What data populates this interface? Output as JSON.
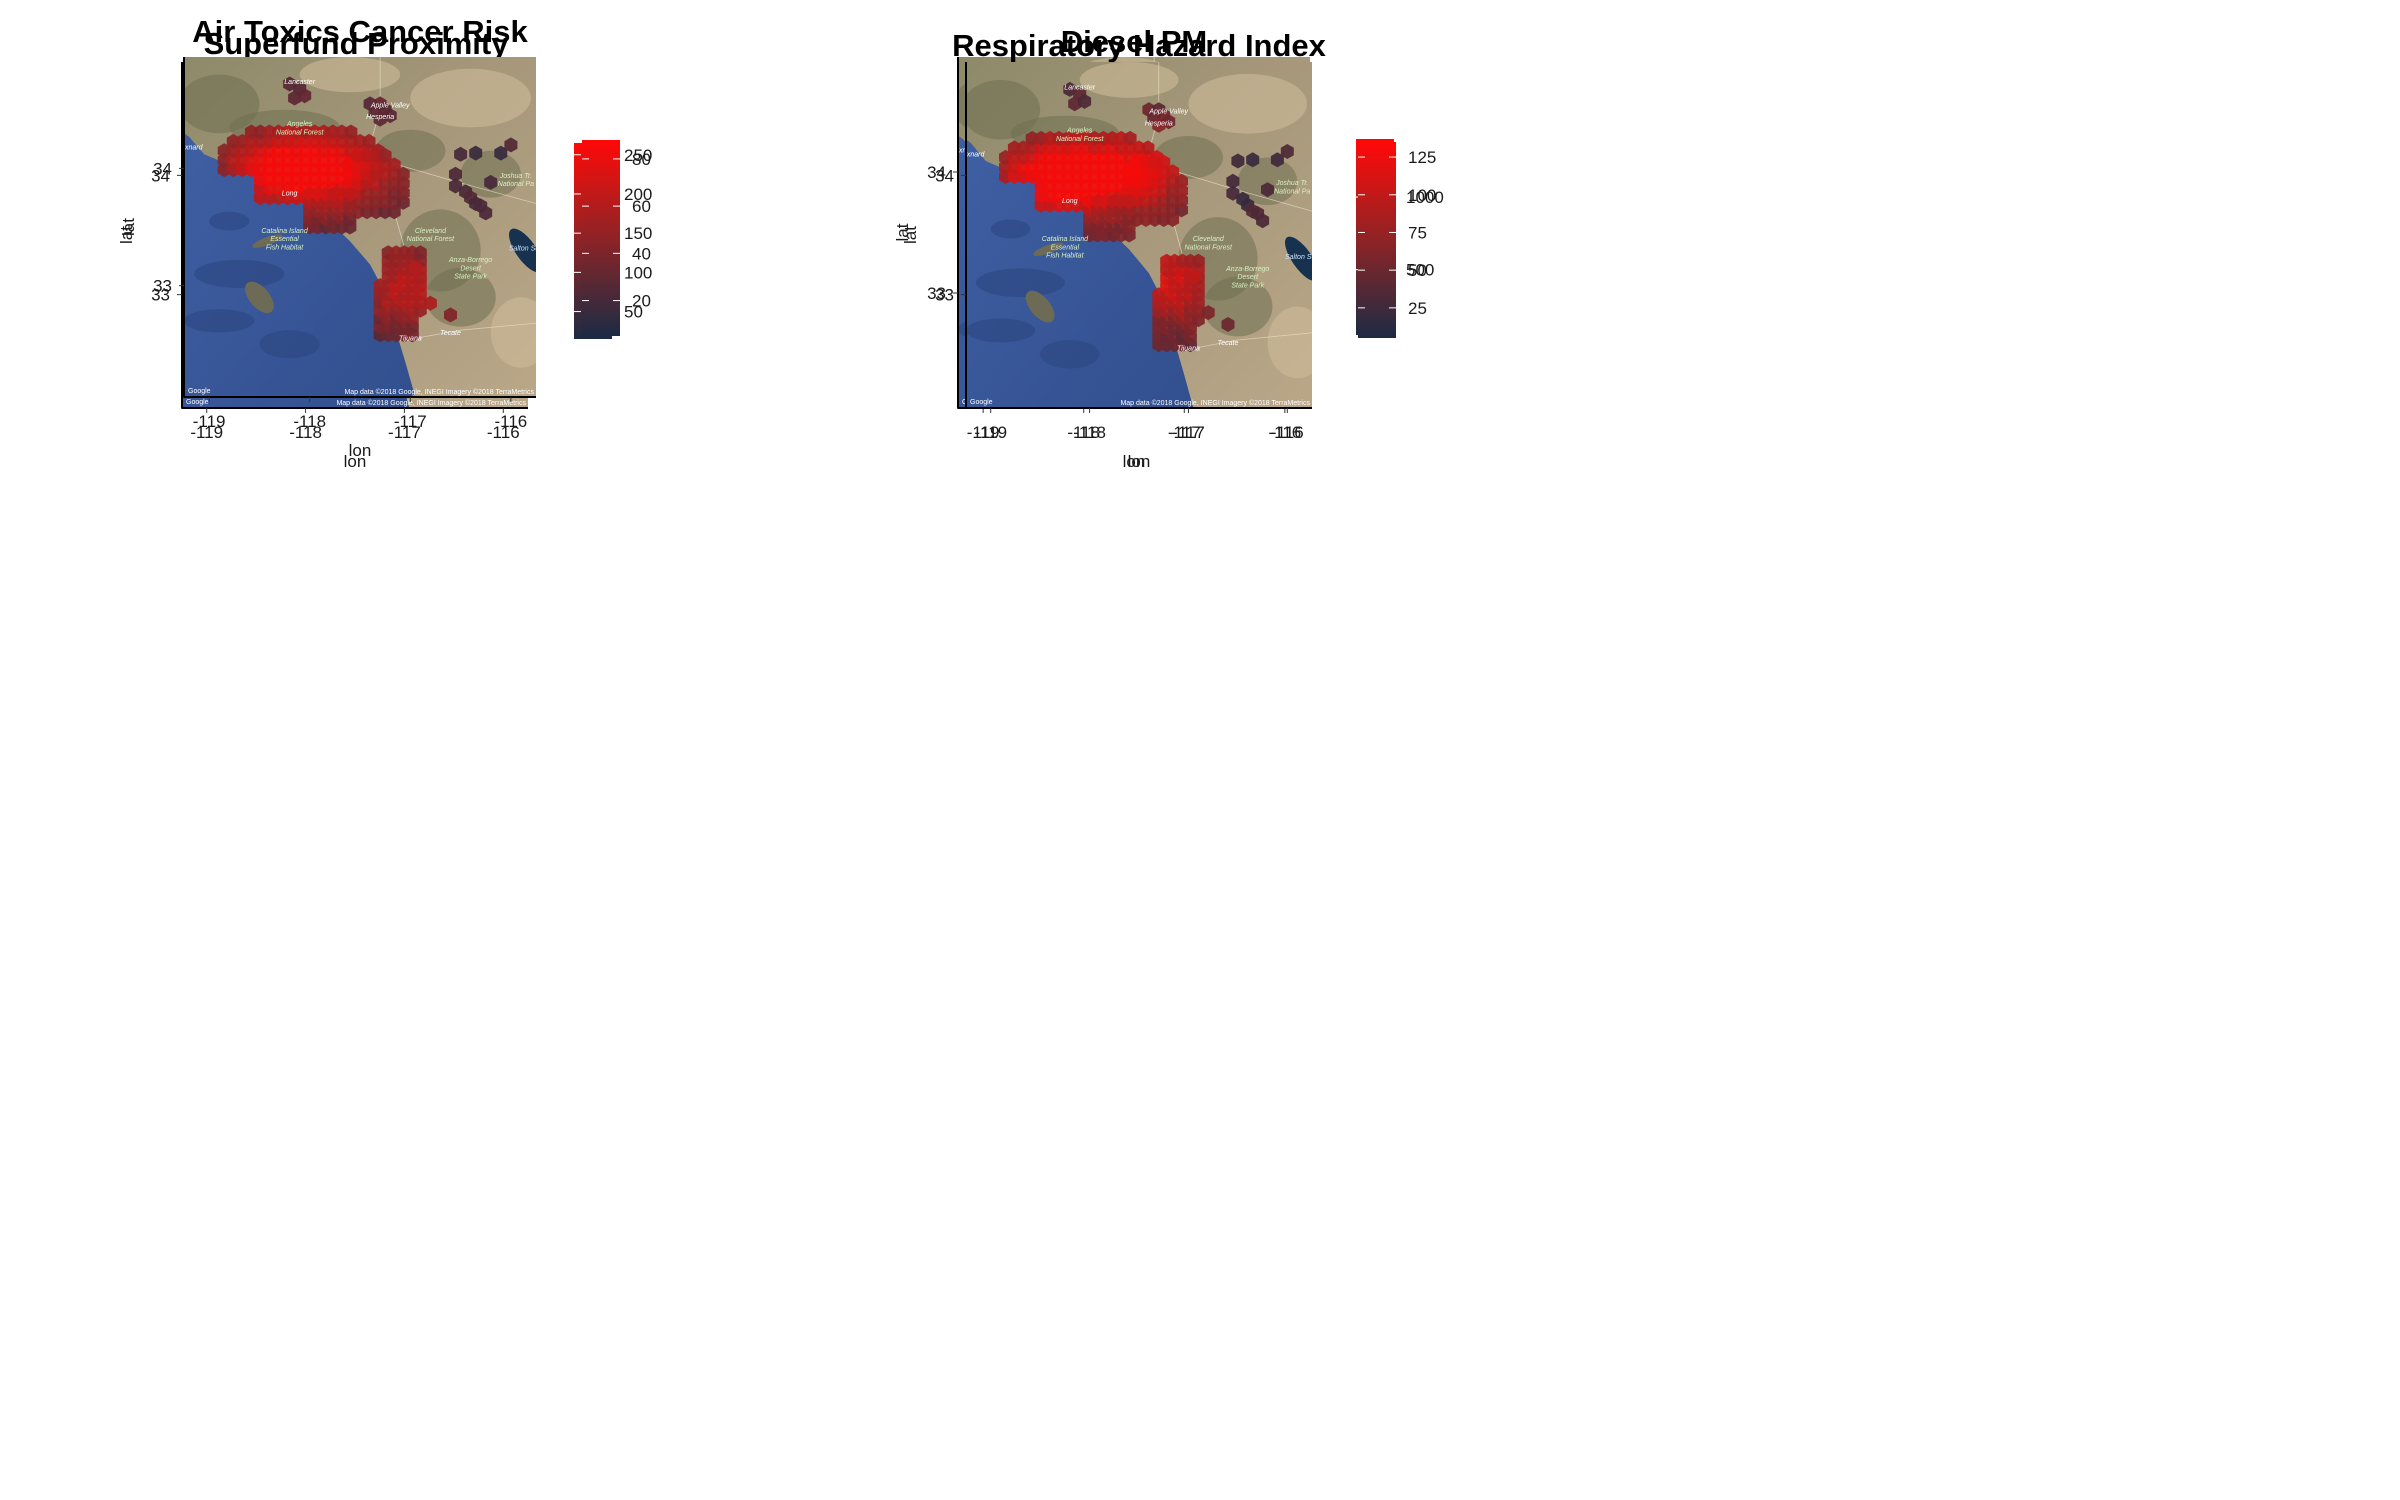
{
  "panels": [
    {
      "title": "Superfund Proximity",
      "legend_ticks": [
        250,
        200,
        150,
        100,
        50
      ],
      "legend_range": [
        15,
        265
      ],
      "hot": [
        [
          "-118.3",
          34.0,
          1.0
        ],
        [
          "-117.5",
          34.05,
          0.7
        ],
        [
          "-117.1",
          33.2,
          0.3
        ]
      ]
    },
    {
      "title": "Diesel PM",
      "legend_ticks": [
        1000,
        500
      ],
      "legend_range": [
        50,
        1400
      ],
      "hot": [
        [
          "-118.2",
          33.95,
          0.9
        ],
        [
          "-117.2",
          33.1,
          0.6
        ],
        [
          "-117.3",
          34.4,
          0.5
        ]
      ]
    },
    {
      "title": "Air Toxics Cancer Risk",
      "legend_ticks": [
        80,
        60,
        40,
        20
      ],
      "legend_range": [
        5,
        88
      ],
      "hot": [
        [
          "-118.3",
          34.0,
          0.7
        ],
        [
          "-117.6",
          34.0,
          0.5
        ],
        [
          "-117.0",
          33.0,
          0.45
        ]
      ]
    },
    {
      "title": "Respiratory Hazard Index",
      "legend_ticks": [
        125,
        100,
        75,
        50,
        25
      ],
      "legend_range": [
        5,
        135
      ],
      "hot": [
        [
          "-118.35",
          33.98,
          0.85
        ],
        [
          "-117.2",
          33.1,
          0.55
        ],
        [
          "-117.5",
          34.05,
          0.6
        ]
      ]
    }
  ],
  "axes": {
    "x_label": "lon",
    "y_label": "lat",
    "x_ticks": [
      "-119",
      "-118",
      "-117",
      "-116"
    ],
    "y_ticks": [
      "34",
      "33"
    ],
    "lon_range": [
      -119.25,
      -115.75
    ],
    "lat_range": [
      32.05,
      34.95
    ]
  },
  "basemap": {
    "attribution_left": "Google",
    "attribution_right": "Map data ©2018 Google, INEGI  Imagery ©2018 TerraMetrics",
    "labels": [
      {
        "text": "Angeles",
        "lon": -118.1,
        "lat": 34.36,
        "color": "#d9f2c0"
      },
      {
        "text": "National Forest",
        "lon": -118.1,
        "lat": 34.29,
        "color": "#d9f2c0"
      },
      {
        "text": "Catalina Island",
        "lon": -118.25,
        "lat": 33.45,
        "color": "#d9f2c0"
      },
      {
        "text": "Essential",
        "lon": -118.25,
        "lat": 33.38,
        "color": "#d9f2c0"
      },
      {
        "text": "Fish Habitat",
        "lon": -118.25,
        "lat": 33.31,
        "color": "#d9f2c0"
      },
      {
        "text": "Cleveland",
        "lon": -116.8,
        "lat": 33.45,
        "color": "#d9f2c0"
      },
      {
        "text": "National Forest",
        "lon": -116.8,
        "lat": 33.38,
        "color": "#d9f2c0"
      },
      {
        "text": "Anza-Borrego",
        "lon": -116.4,
        "lat": 33.2,
        "color": "#d9f2c0"
      },
      {
        "text": "Desert",
        "lon": -116.4,
        "lat": 33.13,
        "color": "#d9f2c0"
      },
      {
        "text": "State Park",
        "lon": -116.4,
        "lat": 33.06,
        "color": "#d9f2c0"
      },
      {
        "text": "Joshua Tr.",
        "lon": -115.95,
        "lat": 33.92,
        "color": "#d9f2c0"
      },
      {
        "text": "National Pa",
        "lon": -115.95,
        "lat": 33.85,
        "color": "#d9f2c0"
      },
      {
        "text": "Tijuana",
        "lon": -117.0,
        "lat": 32.53,
        "color": "#ffffff"
      },
      {
        "text": "Tecate",
        "lon": -116.6,
        "lat": 32.58,
        "color": "#ffffff"
      },
      {
        "text": "Long",
        "lon": -118.2,
        "lat": 33.77,
        "color": "#ffffff"
      },
      {
        "text": "Oxnard",
        "lon": -119.18,
        "lat": 34.16,
        "color": "#ffffff"
      },
      {
        "text": "Salton Sea",
        "lon": -115.85,
        "lat": 33.3,
        "color": "#cfe3ff"
      },
      {
        "text": "Lancaster",
        "lon": -118.1,
        "lat": 34.72,
        "color": "#ffffff"
      },
      {
        "text": "Apple Valley",
        "lon": -117.2,
        "lat": 34.52,
        "color": "#ffffff"
      },
      {
        "text": "Hesperia",
        "lon": -117.3,
        "lat": 34.42,
        "color": "#ffffff"
      }
    ]
  }
}
